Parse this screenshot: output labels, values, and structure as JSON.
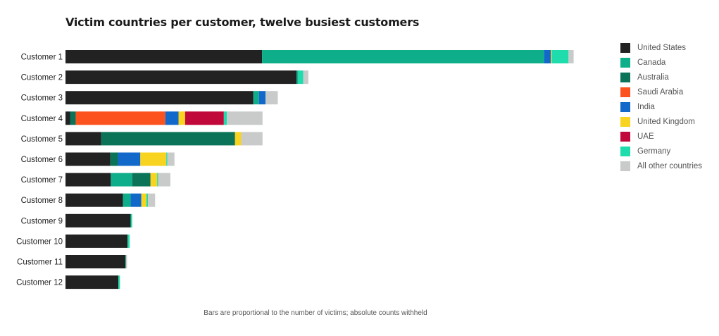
{
  "chart_data": {
    "type": "bar",
    "orientation": "horizontal",
    "stacked": true,
    "title": "Victim countries per customer, twelve busiest customers",
    "footnote": "Bars are proportional to the number of victims; absolute counts withheld",
    "xlabel": "",
    "ylabel": "",
    "legend_position": "right",
    "grid": false,
    "xlim": [
      0,
      100
    ],
    "categories": [
      "Customer 1",
      "Customer 2",
      "Customer 3",
      "Customer 4",
      "Customer 5",
      "Customer 6",
      "Customer 7",
      "Customer 8",
      "Customer 9",
      "Customer 10",
      "Customer 11",
      "Customer 12"
    ],
    "series": [
      {
        "name": "United States",
        "color": "#222222",
        "values": [
          38.6,
          45.4,
          36.9,
          0.9,
          7.0,
          8.8,
          8.9,
          11.3,
          12.8,
          12.2,
          11.8,
          10.4
        ]
      },
      {
        "name": "Canada",
        "color": "#0fae8a",
        "values": [
          55.4,
          0.3,
          1.1,
          0.0,
          0.0,
          0.0,
          4.2,
          1.5,
          0.0,
          0.0,
          0.0,
          0.0
        ]
      },
      {
        "name": "Australia",
        "color": "#0b7357",
        "values": [
          0.0,
          0.0,
          0.0,
          1.1,
          26.3,
          1.5,
          3.6,
          0.0,
          0.0,
          0.0,
          0.0,
          0.0
        ]
      },
      {
        "name": "Saudi Arabia",
        "color": "#fc531e",
        "values": [
          0.0,
          0.0,
          0.0,
          17.6,
          0.0,
          0.0,
          0.0,
          0.0,
          0.0,
          0.0,
          0.0,
          0.0
        ]
      },
      {
        "name": "India",
        "color": "#1269ca",
        "values": [
          1.3,
          0.0,
          1.3,
          2.6,
          0.0,
          4.4,
          0.0,
          2.1,
          0.0,
          0.0,
          0.0,
          0.0
        ]
      },
      {
        "name": "United Kingdom",
        "color": "#f8d320",
        "values": [
          0.2,
          0.0,
          0.0,
          1.3,
          1.2,
          5.1,
          1.3,
          1.0,
          0.0,
          0.0,
          0.0,
          0.0
        ]
      },
      {
        "name": "UAE",
        "color": "#c0093a",
        "values": [
          0.0,
          0.0,
          0.0,
          7.6,
          0.0,
          0.0,
          0.0,
          0.0,
          0.0,
          0.0,
          0.0,
          0.0
        ]
      },
      {
        "name": "Germany",
        "color": "#1fdcad",
        "values": [
          3.3,
          1.0,
          0.0,
          0.6,
          0.0,
          0.2,
          0.2,
          0.3,
          0.3,
          0.4,
          0.1,
          0.3
        ]
      },
      {
        "name": "All other countries",
        "color": "#c9cbca",
        "values": [
          1.0,
          1.0,
          2.4,
          7.0,
          4.2,
          1.4,
          2.4,
          1.4,
          0.0,
          0.0,
          0.2,
          0.0
        ]
      }
    ]
  }
}
